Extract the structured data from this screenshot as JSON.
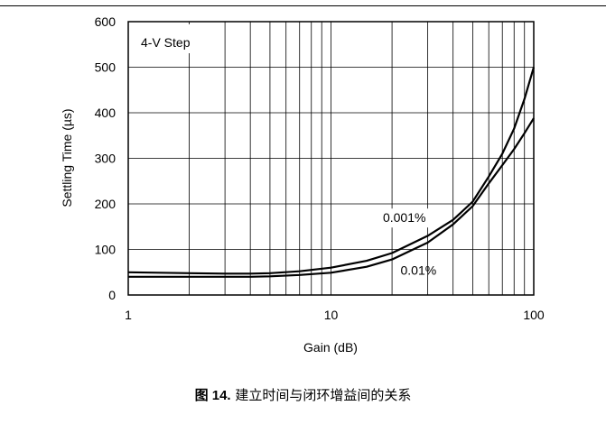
{
  "figure": {
    "caption_number": "图 14.",
    "caption_text": "建立时间与闭环增益间的关系"
  },
  "chart_data": {
    "type": "line",
    "x_scale": "log",
    "xlim": [
      1,
      100
    ],
    "ylim": [
      0,
      600
    ],
    "xlabel": "Gain (dB)",
    "ylabel": "Settling Time (µs)",
    "x_ticks": [
      1,
      10,
      100
    ],
    "x_tick_labels": [
      "1",
      "10",
      "100"
    ],
    "y_ticks": [
      0,
      100,
      200,
      300,
      400,
      500,
      600
    ],
    "y_tick_labels": [
      "0",
      "100",
      "200",
      "300",
      "400",
      "500",
      "600"
    ],
    "grid": true,
    "annotation": "4-V Step",
    "series": [
      {
        "name": "0.001%",
        "color": "#000000",
        "points": [
          [
            1,
            50
          ],
          [
            2,
            48
          ],
          [
            3,
            47
          ],
          [
            4,
            47
          ],
          [
            5,
            48
          ],
          [
            7,
            52
          ],
          [
            10,
            60
          ],
          [
            15,
            75
          ],
          [
            20,
            92
          ],
          [
            30,
            130
          ],
          [
            40,
            165
          ],
          [
            50,
            205
          ],
          [
            60,
            260
          ],
          [
            70,
            310
          ],
          [
            80,
            365
          ],
          [
            90,
            430
          ],
          [
            100,
            500
          ]
        ]
      },
      {
        "name": "0.01%",
        "color": "#000000",
        "points": [
          [
            1,
            40
          ],
          [
            2,
            40
          ],
          [
            3,
            40
          ],
          [
            4,
            40
          ],
          [
            5,
            41
          ],
          [
            7,
            44
          ],
          [
            10,
            49
          ],
          [
            15,
            62
          ],
          [
            20,
            78
          ],
          [
            30,
            115
          ],
          [
            40,
            155
          ],
          [
            50,
            195
          ],
          [
            60,
            245
          ],
          [
            70,
            285
          ],
          [
            80,
            320
          ],
          [
            90,
            355
          ],
          [
            100,
            388
          ]
        ]
      }
    ]
  }
}
